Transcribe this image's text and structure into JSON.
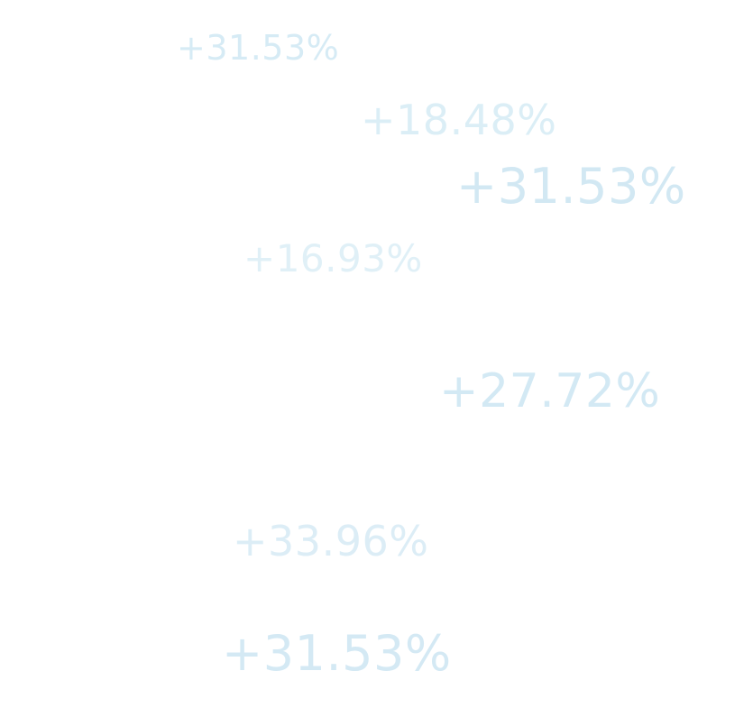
{
  "labels": [
    "+31.53%",
    "+18.48%",
    "+31.53%",
    "+16.93%",
    "+27.72%",
    "+33.96%",
    "+31.53%"
  ],
  "colors": {
    "background": "#ffffff",
    "text": "#d6ebf5"
  }
}
